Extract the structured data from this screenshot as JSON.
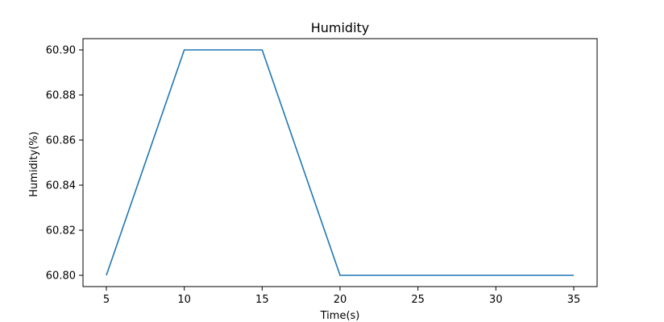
{
  "chart_data": {
    "type": "line",
    "title": "Humidity",
    "xlabel": "Time(s)",
    "ylabel": "Humidity(%)",
    "x": [
      5,
      10,
      15,
      20,
      25,
      30,
      35
    ],
    "series": [
      {
        "values": [
          60.8,
          60.9,
          60.9,
          60.8,
          60.8,
          60.8,
          60.8
        ],
        "color": "#1f77b4"
      }
    ],
    "xlim": [
      3.5,
      36.5
    ],
    "ylim": [
      60.795,
      60.905
    ],
    "xticks": [
      5,
      10,
      15,
      20,
      25,
      30,
      35
    ],
    "xtick_labels": [
      "5",
      "10",
      "15",
      "20",
      "25",
      "30",
      "35"
    ],
    "yticks": [
      60.8,
      60.82,
      60.84,
      60.86,
      60.88,
      60.9
    ],
    "ytick_labels": [
      "60.80",
      "60.82",
      "60.84",
      "60.86",
      "60.88",
      "60.90"
    ],
    "grid": false,
    "legend": false
  }
}
